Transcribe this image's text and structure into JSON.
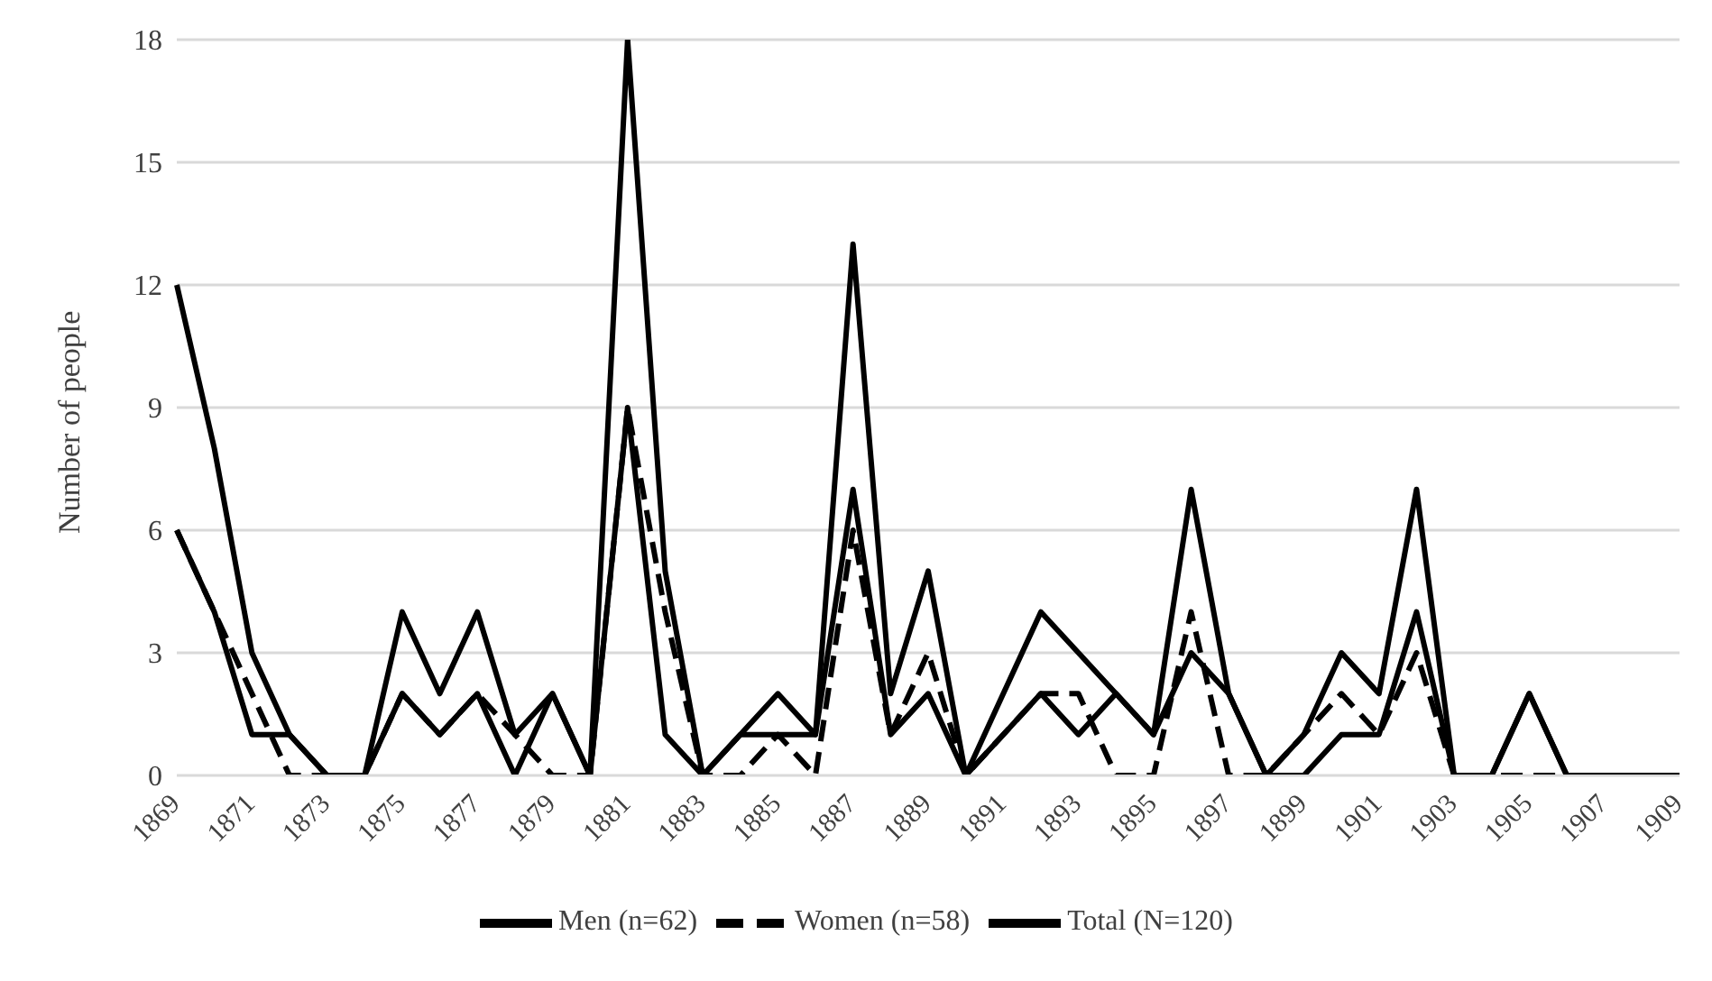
{
  "chart_data": {
    "type": "line",
    "ylabel": "Number of people",
    "categories": [
      "1869",
      null,
      "1871",
      null,
      "1873",
      null,
      "1875",
      null,
      "1877",
      null,
      "1879",
      null,
      "1881",
      null,
      "1883",
      null,
      "1885",
      null,
      "1887",
      null,
      "1889",
      null,
      "1891",
      null,
      "1893",
      null,
      "1895",
      null,
      "1897",
      null,
      "1899",
      null,
      "1901",
      null,
      "1903",
      null,
      "1905",
      null,
      "1907",
      null,
      "1909"
    ],
    "series": [
      {
        "name": "Men (n=62)",
        "color": "#000000",
        "line_style": "solid",
        "values": [
          6,
          4,
          1,
          1,
          0,
          0,
          2,
          1,
          2,
          0,
          2,
          0,
          9,
          1,
          0,
          1,
          1,
          1,
          7,
          1,
          2,
          0,
          1,
          2,
          1,
          2,
          1,
          3,
          2,
          0,
          0,
          1,
          1,
          4,
          0,
          0,
          2,
          0,
          0,
          0,
          0
        ]
      },
      {
        "name": "Women (n=58)",
        "color": "#000000",
        "line_style": "dashed",
        "values": [
          6,
          4,
          2,
          0,
          0,
          0,
          2,
          1,
          2,
          1,
          0,
          0,
          9,
          4,
          0,
          0,
          1,
          0,
          6,
          1,
          3,
          0,
          1,
          2,
          2,
          0,
          0,
          4,
          0,
          0,
          1,
          2,
          1,
          3,
          0,
          0,
          0,
          0,
          0,
          0,
          0
        ]
      },
      {
        "name": "Total (N=120)",
        "color": "#000000",
        "line_style": "solid",
        "values": [
          12,
          8,
          3,
          1,
          0,
          0,
          4,
          2,
          4,
          1,
          2,
          0,
          18,
          5,
          0,
          1,
          2,
          1,
          13,
          2,
          5,
          0,
          2,
          4,
          3,
          2,
          1,
          7,
          2,
          0,
          1,
          3,
          2,
          7,
          0,
          0,
          2,
          0,
          0,
          0,
          0
        ]
      }
    ],
    "ylim": [
      0,
      18
    ],
    "yticks": [
      0,
      3,
      6,
      9,
      12,
      15,
      18
    ],
    "grid": "y",
    "legend": "bottom",
    "marker": "none"
  }
}
